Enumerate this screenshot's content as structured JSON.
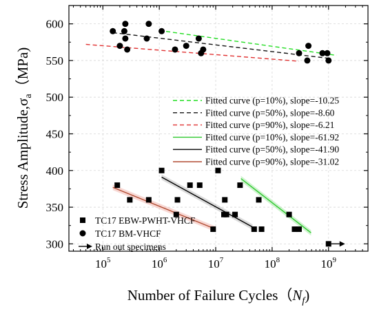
{
  "chart_data": {
    "type": "scatter",
    "xlabel": {
      "text": "Number of Failure Cycles（",
      "var": "N",
      "sub": "f",
      "close": ")"
    },
    "ylabel": {
      "text": "Stress Amplitude,",
      "var": "σ",
      "sub": "a",
      "unit": "（MPa)"
    },
    "x_scale": "log",
    "xlim": [
      25000,
      5000000000
    ],
    "ylim": [
      290,
      625
    ],
    "x_ticks": [
      {
        "value": 100000,
        "base": "10",
        "exp": "5"
      },
      {
        "value": 1000000,
        "base": "10",
        "exp": "6"
      },
      {
        "value": 10000000,
        "base": "10",
        "exp": "7"
      },
      {
        "value": 100000000,
        "base": "10",
        "exp": "8"
      },
      {
        "value": 1000000000,
        "base": "10",
        "exp": "9"
      }
    ],
    "y_ticks": [
      300,
      350,
      400,
      450,
      500,
      550,
      600
    ],
    "grid": true,
    "series": [
      {
        "name": "TC17 EBW-PWHT-VHCF",
        "marker": "square",
        "points": [
          [
            180000,
            380
          ],
          [
            300000,
            360
          ],
          [
            650000,
            360
          ],
          [
            1100000,
            400
          ],
          [
            2000000,
            340
          ],
          [
            2100000,
            360
          ],
          [
            3500000,
            380
          ],
          [
            5200000,
            380
          ],
          [
            9000000,
            320
          ],
          [
            11000000,
            400
          ],
          [
            14000000,
            340
          ],
          [
            14500000,
            360
          ],
          [
            15500000,
            340
          ],
          [
            22000000,
            340
          ],
          [
            27000000,
            380
          ],
          [
            48000000,
            320
          ],
          [
            58000000,
            360
          ],
          [
            65000000,
            320
          ],
          [
            200000000,
            340
          ],
          [
            250000000,
            320
          ],
          [
            300000000,
            320
          ]
        ]
      },
      {
        "name": "TC17 BM-VHCF",
        "marker": "circle",
        "points": [
          [
            150000,
            590
          ],
          [
            200000,
            570
          ],
          [
            240000,
            590
          ],
          [
            250000,
            600
          ],
          [
            250000,
            580
          ],
          [
            270000,
            565
          ],
          [
            600000,
            580
          ],
          [
            650000,
            600
          ],
          [
            1100000,
            590
          ],
          [
            1900000,
            565
          ],
          [
            3000000,
            570
          ],
          [
            5000000,
            580
          ],
          [
            5500000,
            560
          ],
          [
            6000000,
            565
          ],
          [
            300000000,
            560
          ],
          [
            420000000,
            550
          ],
          [
            440000000,
            570
          ],
          [
            780000000,
            560
          ],
          [
            950000000,
            560
          ],
          [
            1000000000,
            550
          ]
        ]
      },
      {
        "name": "Run out specimens",
        "marker": "arrow",
        "points": [
          [
            1000000000,
            300
          ]
        ]
      }
    ],
    "fits": [
      {
        "label": "Fitted curve  (p=10%), slope=-10.25",
        "color": "#22dd22",
        "dash": true,
        "x": [
          1000000,
          1400000000
        ],
        "y": [
          591,
          557
        ]
      },
      {
        "label": "Fitted curve  (p=50%), slope=-8.60",
        "color": "#111111",
        "dash": true,
        "x": [
          150000,
          1000000000
        ],
        "y": [
          588,
          553
        ]
      },
      {
        "label": "Fitted curve  (p=90%), slope=-6.21",
        "color": "#e03030",
        "dash": true,
        "x": [
          50000,
          300000000
        ],
        "y": [
          572,
          549
        ]
      },
      {
        "label": "Fitted curve  (p=10%), slope=-61.92",
        "color": "#2ec82e",
        "dash": false,
        "x": [
          28000000,
          490000000
        ],
        "y": [
          389,
          315
        ]
      },
      {
        "label": "Fitted curve  (p=50%), slope=-41.90",
        "color": "#000000",
        "dash": false,
        "x": [
          1100000,
          45000000
        ],
        "y": [
          391,
          323
        ]
      },
      {
        "label": "Fitted curve  (p=90%), slope=-31.02",
        "color": "#b04a30",
        "dash": false,
        "x": [
          150000,
          10000000
        ],
        "y": [
          377,
          320
        ]
      }
    ],
    "bands": [
      {
        "color": "#f2b8b0",
        "x": [
          150000,
          10000000
        ],
        "y": [
          377,
          320
        ]
      },
      {
        "color": "#bfbfbf",
        "x": [
          1100000,
          45000000
        ],
        "y": [
          391,
          323
        ]
      },
      {
        "color": "#a8eaa8",
        "x": [
          28000000,
          490000000
        ],
        "y": [
          389,
          315
        ]
      }
    ],
    "legend_fits_position": "right",
    "legend_markers_position": "bottom-left"
  }
}
